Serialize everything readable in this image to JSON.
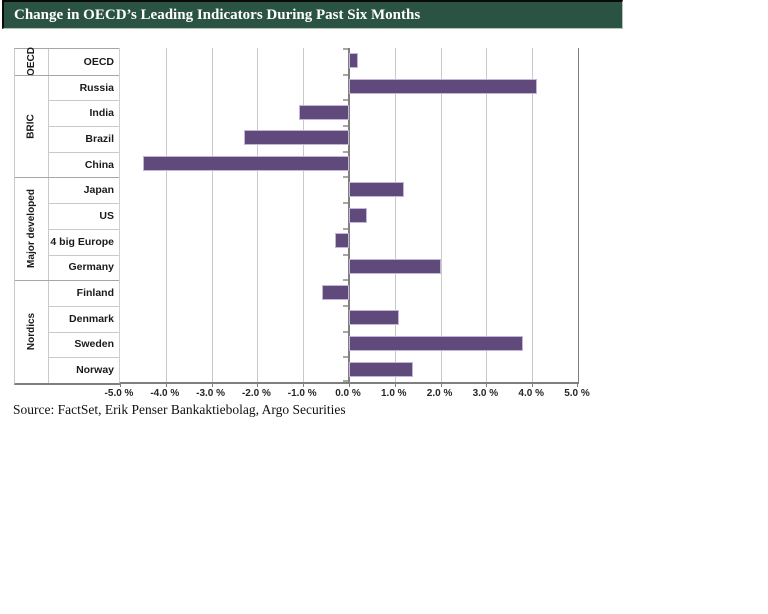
{
  "title": "Change in OECD’s Leading Indicators During Past Six Months",
  "source": "Source: FactSet, Erik Penser Bankaktiebolag, Argo Securities",
  "colors": {
    "title_bg": "#2B5343",
    "title_text": "#FFFFFF",
    "bar": "#5F4A7B",
    "bar_border": "#C3B5D6",
    "gridline": "#C9C9C9",
    "axis_line": "#7F7F7F",
    "group_boundary_line": "#A6A6A6",
    "label_text": "#1A1A1A"
  },
  "chart_data": {
    "type": "bar",
    "orientation": "horizontal",
    "title": "Change in OECD’s Leading Indicators During Past Six Months",
    "xlim": [
      -5.0,
      5.0
    ],
    "tick_step": 1.0,
    "tick_labels": [
      "-5.0 %",
      "-4.0 %",
      "-3.0 %",
      "-2.0 %",
      "-1.0 %",
      "0.0 %",
      "1.0 %",
      "2.0 %",
      "3.0 %",
      "4.0 %",
      "5.0 %"
    ],
    "grid": true,
    "legend": "none",
    "groups": [
      {
        "label": "OECD",
        "categories": [
          "OECD"
        ],
        "values": [
          0.2
        ]
      },
      {
        "label": "BRIC",
        "categories": [
          "Russia",
          "India",
          "Brazil",
          "China"
        ],
        "values": [
          4.1,
          -1.1,
          -2.3,
          -4.5
        ]
      },
      {
        "label": "Major developed",
        "categories": [
          "Japan",
          "US",
          "4 big Europe",
          "Germany"
        ],
        "values": [
          1.2,
          0.4,
          -0.3,
          2.0
        ]
      },
      {
        "label": "Nordics",
        "categories": [
          "Finland",
          "Denmark",
          "Sweden",
          "Norway"
        ],
        "values": [
          -0.6,
          1.1,
          3.8,
          1.4
        ]
      }
    ]
  }
}
